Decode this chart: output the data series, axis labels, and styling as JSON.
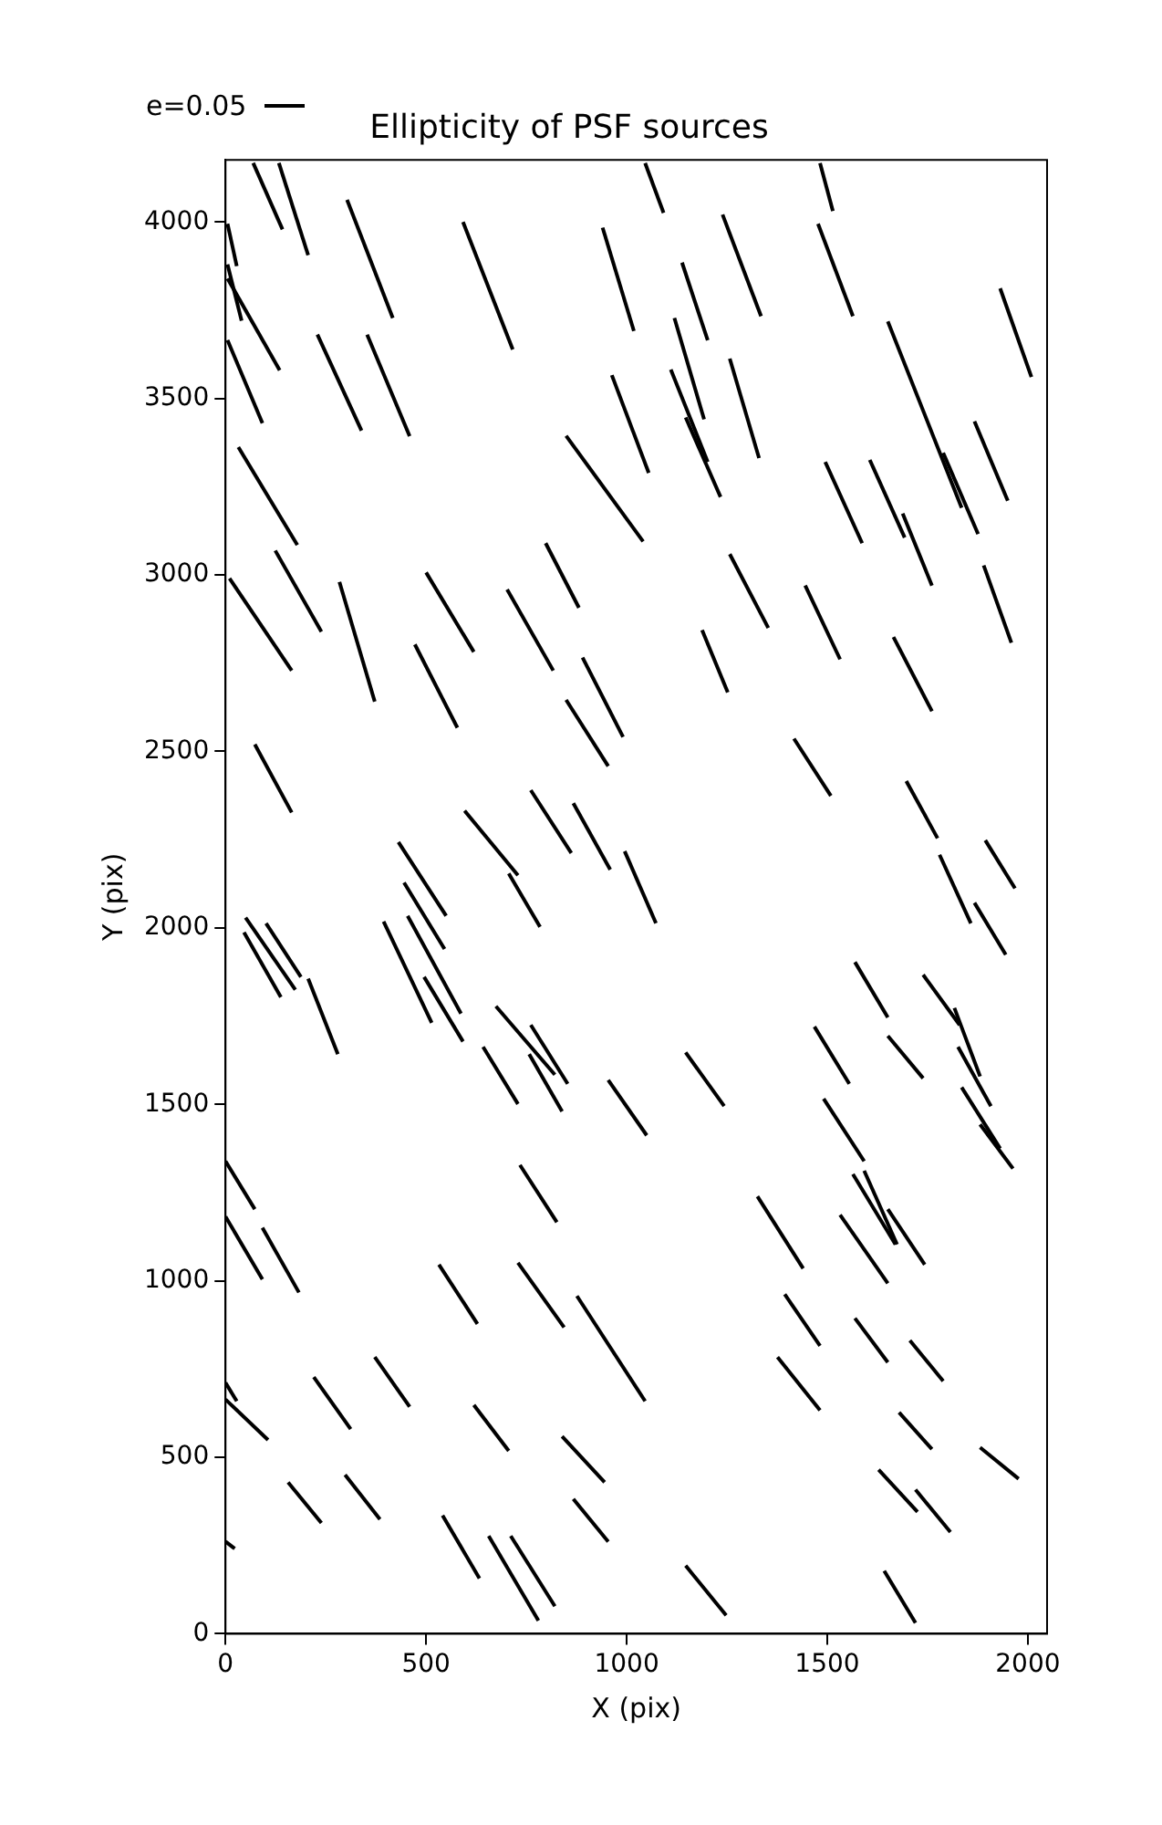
{
  "chart_data": {
    "type": "line",
    "title": "Ellipticity of PSF sources",
    "xlabel": "X (pix)",
    "ylabel": "Y (pix)",
    "annotations": [
      "e=0.05"
    ],
    "color": "#000000",
    "marker": "none",
    "line_style": "solid",
    "xlim": [
      0,
      2048
    ],
    "ylim": [
      0,
      4176
    ],
    "xticks": [
      0,
      500,
      1000,
      1500,
      2000
    ],
    "yticks": [
      0,
      500,
      1000,
      1500,
      2000,
      2500,
      3000,
      3500,
      4000
    ],
    "series": [
      {
        "x": [
          69,
          142
        ],
        "values": [
          4167,
          3979
        ]
      },
      {
        "x": [
          133,
          206
        ],
        "values": [
          4167,
          3906
        ]
      },
      {
        "x": [
          5,
          28
        ],
        "values": [
          3995,
          3875
        ]
      },
      {
        "x": [
          5,
          40
        ],
        "values": [
          3880,
          3720
        ]
      },
      {
        "x": [
          5,
          135
        ],
        "values": [
          3840,
          3580
        ]
      },
      {
        "x": [
          5,
          92
        ],
        "values": [
          3665,
          3430
        ]
      },
      {
        "x": [
          303,
          417
        ],
        "values": [
          4063,
          3728
        ]
      },
      {
        "x": [
          592,
          716
        ],
        "values": [
          4000,
          3639
        ]
      },
      {
        "x": [
          940,
          1018
        ],
        "values": [
          3984,
          3691
        ]
      },
      {
        "x": [
          229,
          339
        ],
        "values": [
          3681,
          3409
        ]
      },
      {
        "x": [
          353,
          459
        ],
        "values": [
          3681,
          3393
        ]
      },
      {
        "x": [
          963,
          1055
        ],
        "values": [
          3566,
          3289
        ]
      },
      {
        "x": [
          32,
          179
        ],
        "values": [
          3362,
          3085
        ]
      },
      {
        "x": [
          849,
          1041
        ],
        "values": [
          3394,
          3095
        ]
      },
      {
        "x": [
          124,
          239
        ],
        "values": [
          3069,
          2839
        ]
      },
      {
        "x": [
          10,
          165
        ],
        "values": [
          2990,
          2729
        ]
      },
      {
        "x": [
          284,
          372
        ],
        "values": [
          2980,
          2641
        ]
      },
      {
        "x": [
          500,
          619
        ],
        "values": [
          3007,
          2782
        ]
      },
      {
        "x": [
          702,
          817
        ],
        "values": [
          2959,
          2729
        ]
      },
      {
        "x": [
          798,
          881
        ],
        "values": [
          3090,
          2907
        ]
      },
      {
        "x": [
          472,
          578
        ],
        "values": [
          2803,
          2567
        ]
      },
      {
        "x": [
          890,
          991
        ],
        "values": [
          2766,
          2541
        ]
      },
      {
        "x": [
          849,
          954
        ],
        "values": [
          2646,
          2458
        ]
      },
      {
        "x": [
          73,
          165
        ],
        "values": [
          2520,
          2327
        ]
      },
      {
        "x": [
          596,
          729
        ],
        "values": [
          2332,
          2149
        ]
      },
      {
        "x": [
          761,
          862
        ],
        "values": [
          2390,
          2212
        ]
      },
      {
        "x": [
          867,
          959
        ],
        "values": [
          2353,
          2165
        ]
      },
      {
        "x": [
          995,
          1073
        ],
        "values": [
          2217,
          2013
        ]
      },
      {
        "x": [
          706,
          784
        ],
        "values": [
          2154,
          2003
        ]
      },
      {
        "x": [
          431,
          550
        ],
        "values": [
          2243,
          2034
        ]
      },
      {
        "x": [
          445,
          546
        ],
        "values": [
          2128,
          1940
        ]
      },
      {
        "x": [
          454,
          587
        ],
        "values": [
          2034,
          1757
        ]
      },
      {
        "x": [
          394,
          514
        ],
        "values": [
          2018,
          1731
        ]
      },
      {
        "x": [
          495,
          592
        ],
        "values": [
          1861,
          1678
        ]
      },
      {
        "x": [
          50,
          174
        ],
        "values": [
          2029,
          1825
        ]
      },
      {
        "x": [
          46,
          138
        ],
        "values": [
          1987,
          1804
        ]
      },
      {
        "x": [
          101,
          188
        ],
        "values": [
          2013,
          1861
        ]
      },
      {
        "x": [
          206,
          280
        ],
        "values": [
          1856,
          1642
        ]
      },
      {
        "x": [
          674,
          821
        ],
        "values": [
          1778,
          1584
        ]
      },
      {
        "x": [
          761,
          853
        ],
        "values": [
          1725,
          1558
        ]
      },
      {
        "x": [
          757,
          839
        ],
        "values": [
          1642,
          1480
        ]
      },
      {
        "x": [
          642,
          729
        ],
        "values": [
          1663,
          1501
        ]
      },
      {
        "x": [
          954,
          1050
        ],
        "values": [
          1569,
          1412
        ]
      },
      {
        "x": [
          0,
          73
        ],
        "values": [
          1339,
          1203
        ]
      },
      {
        "x": [
          0,
          92
        ],
        "values": [
          1182,
          1004
        ]
      },
      {
        "x": [
          92,
          183
        ],
        "values": [
          1150,
          967
        ]
      },
      {
        "x": [
          734,
          826
        ],
        "values": [
          1328,
          1166
        ]
      },
      {
        "x": [
          532,
          628
        ],
        "values": [
          1046,
          878
        ]
      },
      {
        "x": [
          729,
          844
        ],
        "values": [
          1051,
          868
        ]
      },
      {
        "x": [
          876,
          1046
        ],
        "values": [
          957,
          659
        ]
      },
      {
        "x": [
          0,
          28
        ],
        "values": [
          711,
          659
        ]
      },
      {
        "x": [
          0,
          106
        ],
        "values": [
          664,
          549
        ]
      },
      {
        "x": [
          220,
          312
        ],
        "values": [
          727,
          580
        ]
      },
      {
        "x": [
          372,
          459
        ],
        "values": [
          784,
          643
        ]
      },
      {
        "x": [
          619,
          706
        ],
        "values": [
          648,
          518
        ]
      },
      {
        "x": [
          839,
          945
        ],
        "values": [
          559,
          429
        ]
      },
      {
        "x": [
          156,
          239
        ],
        "values": [
          429,
          314
        ]
      },
      {
        "x": [
          298,
          385
        ],
        "values": [
          450,
          324
        ]
      },
      {
        "x": [
          867,
          954
        ],
        "values": [
          382,
          261
        ]
      },
      {
        "x": [
          0,
          23
        ],
        "values": [
          261,
          241
        ]
      },
      {
        "x": [
          541,
          633
        ],
        "values": [
          335,
          157
        ]
      },
      {
        "x": [
          656,
          780
        ],
        "values": [
          277,
          37
        ]
      },
      {
        "x": [
          711,
          821
        ],
        "values": [
          277,
          78
        ]
      },
      {
        "x": [
          1564,
          1670
        ],
        "values": [
          1302,
          1103
        ]
      },
      {
        "x": [
          1592,
          1674
        ],
        "values": [
          1312,
          1103
        ]
      },
      {
        "x": [
          1651,
          1743
        ],
        "values": [
          1203,
          1046
        ]
      },
      {
        "x": [
          1532,
          1651
        ],
        "values": [
          1187,
          993
        ]
      },
      {
        "x": [
          1326,
          1440
        ],
        "values": [
          1239,
          1035
        ]
      },
      {
        "x": [
          1394,
          1482
        ],
        "values": [
          962,
          816
        ]
      },
      {
        "x": [
          1569,
          1651
        ],
        "values": [
          894,
          769
        ]
      },
      {
        "x": [
          1706,
          1789
        ],
        "values": [
          831,
          716
        ]
      },
      {
        "x": [
          1376,
          1482
        ],
        "values": [
          784,
          633
        ]
      },
      {
        "x": [
          1679,
          1761
        ],
        "values": [
          627,
          523
        ]
      },
      {
        "x": [
          1881,
          1977
        ],
        "values": [
          528,
          439
        ]
      },
      {
        "x": [
          1628,
          1725
        ],
        "values": [
          465,
          345
        ]
      },
      {
        "x": [
          1720,
          1807
        ],
        "values": [
          408,
          288
        ]
      },
      {
        "x": [
          1147,
          1248
        ],
        "values": [
          193,
          52
        ]
      },
      {
        "x": [
          1642,
          1720
        ],
        "values": [
          178,
          31
        ]
      },
      {
        "x": [
          1417,
          1509
        ],
        "values": [
          2536,
          2374
        ]
      },
      {
        "x": [
          1697,
          1775
        ],
        "values": [
          2416,
          2254
        ]
      },
      {
        "x": [
          1894,
          1968
        ],
        "values": [
          2248,
          2112
        ]
      },
      {
        "x": [
          1780,
          1858
        ],
        "values": [
          2207,
          2013
        ]
      },
      {
        "x": [
          1867,
          1945
        ],
        "values": [
          2071,
          1924
        ]
      },
      {
        "x": [
          1569,
          1651
        ],
        "values": [
          1903,
          1746
        ]
      },
      {
        "x": [
          1739,
          1830
        ],
        "values": [
          1867,
          1725
        ]
      },
      {
        "x": [
          1817,
          1881
        ],
        "values": [
          1773,
          1579
        ]
      },
      {
        "x": [
          1826,
          1908
        ],
        "values": [
          1663,
          1495
        ]
      },
      {
        "x": [
          1835,
          1931
        ],
        "values": [
          1548,
          1375
        ]
      },
      {
        "x": [
          1881,
          1963
        ],
        "values": [
          1443,
          1318
        ]
      },
      {
        "x": [
          1651,
          1739
        ],
        "values": [
          1694,
          1574
        ]
      },
      {
        "x": [
          1468,
          1555
        ],
        "values": [
          1720,
          1558
        ]
      },
      {
        "x": [
          1147,
          1243
        ],
        "values": [
          1647,
          1495
        ]
      },
      {
        "x": [
          1491,
          1592
        ],
        "values": [
          1516,
          1339
        ]
      },
      {
        "x": [
          1046,
          1092
        ],
        "values": [
          4167,
          4026
        ]
      },
      {
        "x": [
          1482,
          1514
        ],
        "values": [
          4167,
          4031
        ]
      },
      {
        "x": [
          1239,
          1335
        ],
        "values": [
          4021,
          3733
        ]
      },
      {
        "x": [
          1477,
          1564
        ],
        "values": [
          3995,
          3733
        ]
      },
      {
        "x": [
          1138,
          1202
        ],
        "values": [
          3885,
          3665
        ]
      },
      {
        "x": [
          1931,
          2009
        ],
        "values": [
          3812,
          3561
        ]
      },
      {
        "x": [
          1651,
          1835
        ],
        "values": [
          3718,
          3190
        ]
      },
      {
        "x": [
          1789,
          1876
        ],
        "values": [
          3346,
          3116
        ]
      },
      {
        "x": [
          1867,
          1950
        ],
        "values": [
          3435,
          3210
        ]
      },
      {
        "x": [
          1119,
          1193
        ],
        "values": [
          3728,
          3441
        ]
      },
      {
        "x": [
          1110,
          1202
        ],
        "values": [
          3582,
          3320
        ]
      },
      {
        "x": [
          1147,
          1234
        ],
        "values": [
          3446,
          3221
        ]
      },
      {
        "x": [
          1257,
          1330
        ],
        "values": [
          3613,
          3331
        ]
      },
      {
        "x": [
          1495,
          1587
        ],
        "values": [
          3320,
          3090
        ]
      },
      {
        "x": [
          1606,
          1693
        ],
        "values": [
          3326,
          3106
        ]
      },
      {
        "x": [
          1688,
          1761
        ],
        "values": [
          3174,
          2970
        ]
      },
      {
        "x": [
          1257,
          1353
        ],
        "values": [
          3059,
          2850
        ]
      },
      {
        "x": [
          1445,
          1532
        ],
        "values": [
          2970,
          2761
        ]
      },
      {
        "x": [
          1890,
          1959
        ],
        "values": [
          3027,
          2808
        ]
      },
      {
        "x": [
          1188,
          1252
        ],
        "values": [
          2844,
          2667
        ]
      },
      {
        "x": [
          1665,
          1761
        ],
        "values": [
          2824,
          2614
        ]
      }
    ]
  }
}
